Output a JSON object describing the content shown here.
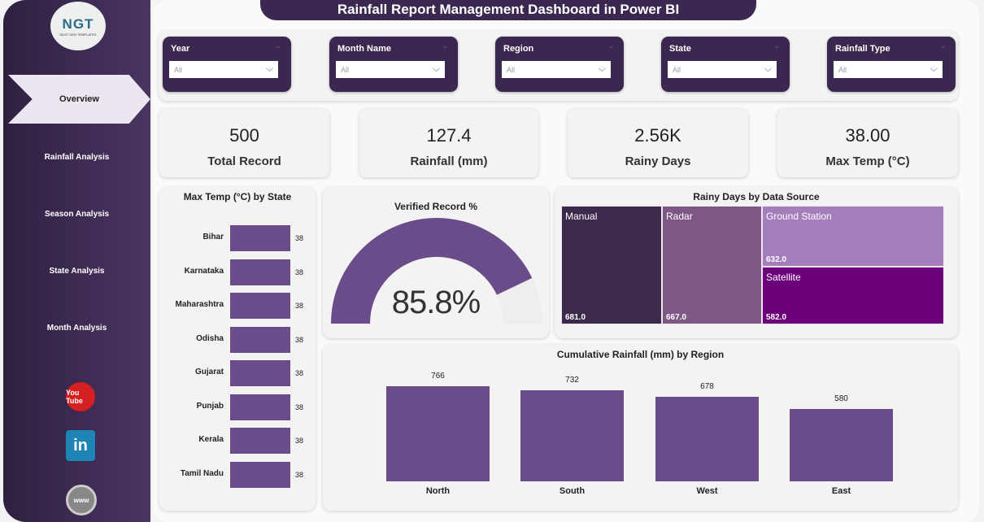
{
  "title": "Rainfall Report Management Dashboard in Power BI",
  "logo": {
    "text": "NGT",
    "sub": "NEXT GEN TEMPLATES"
  },
  "nav": [
    "Overview",
    "Rainfall Analysis",
    "Season Analysis",
    "State Analysis",
    "Month Analysis"
  ],
  "social": {
    "youtube": "You Tube",
    "linkedin": "in",
    "web": "www"
  },
  "filters": [
    {
      "label": "Year",
      "value": "All"
    },
    {
      "label": "Month Name",
      "value": "All"
    },
    {
      "label": "Region",
      "value": "All"
    },
    {
      "label": "State",
      "value": "All"
    },
    {
      "label": "Rainfall Type",
      "value": "All"
    }
  ],
  "kpis": [
    {
      "value": "500",
      "label": "Total Record"
    },
    {
      "value": "127.4",
      "label": "Rainfall (mm)"
    },
    {
      "value": "2.56K",
      "label": "Rainy Days"
    },
    {
      "value": "38.00",
      "label": "Max Temp (°C)"
    }
  ],
  "colors": {
    "bar": "#6b4c8a",
    "sidebar": "#3b2850",
    "manual": "#3b2a4c",
    "radar": "#7e5885",
    "ground": "#a47ebb",
    "satellite": "#6c007a"
  },
  "chart_data": [
    {
      "type": "bar",
      "title": "Max Temp (°C) by State",
      "categories": [
        "Bihar",
        "Karnataka",
        "Maharashtra",
        "Odisha",
        "Gujarat",
        "Punjab",
        "Kerala",
        "Tamil Nadu"
      ],
      "values": [
        38,
        38,
        38,
        38,
        38,
        38,
        38,
        38
      ],
      "labels": [
        "38",
        "38",
        "38",
        "38",
        "38",
        "38",
        "38",
        "38"
      ]
    },
    {
      "type": "gauge",
      "title": "Verified Record %",
      "value": 85.8,
      "label": "85.8%",
      "max": 100
    },
    {
      "type": "treemap",
      "title": "Rainy Days by Data Source",
      "items": [
        {
          "name": "Manual",
          "value": 681,
          "label": "681.0"
        },
        {
          "name": "Radar",
          "value": 667,
          "label": "667.0"
        },
        {
          "name": "Ground Station",
          "value": 632,
          "label": "632.0"
        },
        {
          "name": "Satellite",
          "value": 582,
          "label": "582.0"
        }
      ]
    },
    {
      "type": "bar",
      "title": "Cumulative Rainfall (mm) by Region",
      "categories": [
        "North",
        "South",
        "West",
        "East"
      ],
      "values": [
        766,
        732,
        678,
        580
      ],
      "labels": [
        "766",
        "732",
        "678",
        "580"
      ]
    }
  ]
}
